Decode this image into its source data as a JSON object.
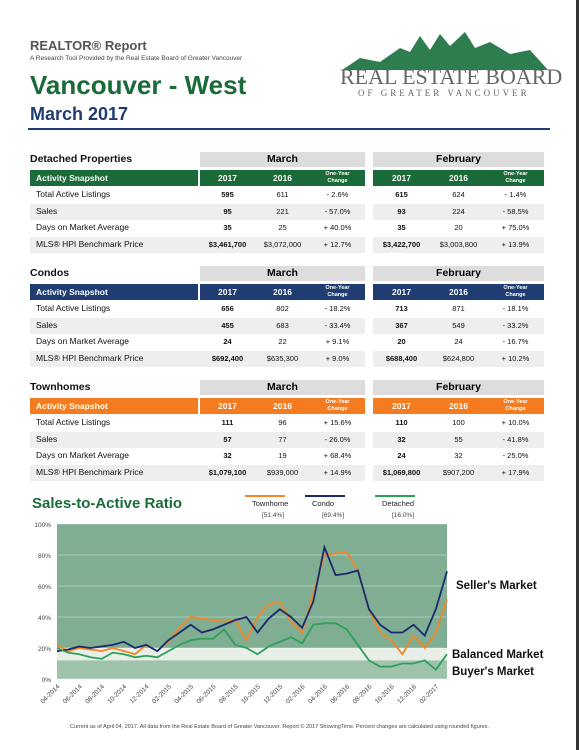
{
  "header": {
    "report": "REALTOR® Report",
    "subtitle": "A Research Tool Provided by the Real Estate Board of Greater Vancouver",
    "area": "Vancouver - West",
    "period": "March 2017",
    "logo_main": "REAL ESTATE BOARD",
    "logo_sub": "OF GREATER VANCOUVER"
  },
  "tables": [
    {
      "title": "Detached Properties",
      "color": "#1b6b3a",
      "months": [
        "March",
        "February"
      ],
      "snapshot": "Activity Snapshot",
      "columns": [
        "2017",
        "2016",
        "One-Year Change",
        "2017",
        "2016",
        "One-Year Change"
      ],
      "rows": [
        [
          "Total Active Listings",
          "595",
          "611",
          "- 2.6%",
          "615",
          "624",
          "- 1.4%"
        ],
        [
          "Sales",
          "95",
          "221",
          "- 57.0%",
          "93",
          "224",
          "- 58.5%"
        ],
        [
          "Days on Market Average",
          "35",
          "25",
          "+ 40.0%",
          "35",
          "20",
          "+ 75.0%"
        ],
        [
          "MLS® HPI Benchmark Price",
          "$3,461,700",
          "$3,072,000",
          "+ 12.7%",
          "$3,422,700",
          "$3,003,800",
          "+ 13.9%"
        ]
      ]
    },
    {
      "title": "Condos",
      "color": "#1f3d73",
      "months": [
        "March",
        "February"
      ],
      "snapshot": "Activity Snapshot",
      "columns": [
        "2017",
        "2016",
        "One-Year Change",
        "2017",
        "2016",
        "One-Year Change"
      ],
      "rows": [
        [
          "Total Active Listings",
          "656",
          "802",
          "- 18.2%",
          "713",
          "871",
          "- 18.1%"
        ],
        [
          "Sales",
          "455",
          "683",
          "- 33.4%",
          "367",
          "549",
          "- 33.2%"
        ],
        [
          "Days on Market Average",
          "24",
          "22",
          "+ 9.1%",
          "20",
          "24",
          "- 16.7%"
        ],
        [
          "MLS® HPI Benchmark Price",
          "$692,400",
          "$635,300",
          "+ 9.0%",
          "$688,400",
          "$624,800",
          "+ 10.2%"
        ]
      ]
    },
    {
      "title": "Townhomes",
      "color": "#f47b20",
      "months": [
        "March",
        "February"
      ],
      "snapshot": "Activity Snapshot",
      "columns": [
        "2017",
        "2016",
        "One-Year Change",
        "2017",
        "2016",
        "One-Year Change"
      ],
      "rows": [
        [
          "Total Active Listings",
          "111",
          "96",
          "+ 15.6%",
          "110",
          "100",
          "+ 10.0%"
        ],
        [
          "Sales",
          "57",
          "77",
          "- 26.0%",
          "32",
          "55",
          "- 41.8%"
        ],
        [
          "Days on Market Average",
          "32",
          "19",
          "+ 68.4%",
          "24",
          "32",
          "- 25.0%"
        ],
        [
          "MLS® HPI Benchmark Price",
          "$1,079,100",
          "$939,000",
          "+ 14.9%",
          "$1,069,800",
          "$907,200",
          "+ 17.9%"
        ]
      ]
    }
  ],
  "chart_data": {
    "type": "line",
    "title": "Sales-to-Active Ratio",
    "categories": [
      "04-2014",
      null,
      "06-2014",
      null,
      "08-2014",
      null,
      "10-2014",
      null,
      "12-2014",
      null,
      "02-2015",
      null,
      "04-2015",
      null,
      "06-2015",
      null,
      "08-2015",
      null,
      "10-2015",
      null,
      "12-2015",
      null,
      "02-2016",
      null,
      "04-2016",
      null,
      "06-2016",
      null,
      "08-2016",
      null,
      "10-2016",
      null,
      "12-2016",
      null,
      "02-2017",
      null
    ],
    "series": [
      {
        "name": "Townhome",
        "legend_value": "[51.4%]",
        "color": "#f4862a",
        "values": [
          22,
          18,
          20,
          19,
          18,
          20,
          18,
          16,
          22,
          18,
          24,
          33,
          40,
          39,
          38,
          37,
          38,
          25,
          40,
          48,
          50,
          37,
          30,
          55,
          80,
          81,
          82,
          70,
          45,
          30,
          25,
          16,
          28,
          20,
          30,
          51.4
        ]
      },
      {
        "name": "Condo",
        "legend_value": "[69.4%]",
        "color": "#1a2a6c",
        "values": [
          18,
          19,
          21,
          20,
          21,
          22,
          24,
          20,
          22,
          18,
          25,
          30,
          35,
          30,
          32,
          35,
          38,
          40,
          30,
          39,
          45,
          40,
          33,
          50,
          85,
          67,
          68,
          70,
          45,
          35,
          30,
          30,
          35,
          28,
          45,
          69.4
        ]
      },
      {
        "name": "Detached",
        "legend_value": "[16.0%]",
        "color": "#2ea05a",
        "values": [
          20,
          17,
          16,
          14,
          13,
          17,
          16,
          14,
          15,
          14,
          18,
          22,
          25,
          26,
          26,
          32,
          22,
          20,
          16,
          21,
          24,
          27,
          23,
          35,
          36,
          36,
          32,
          22,
          12,
          8,
          8,
          10,
          10,
          12,
          6,
          16.0
        ]
      }
    ],
    "zones": [
      {
        "label": "Seller's Market",
        "from": 20,
        "to": 100,
        "color": "#7fae93"
      },
      {
        "label": "Balanced Market",
        "from": 12,
        "to": 20,
        "color": "#e8efe9"
      },
      {
        "label": "Buyer's Market",
        "from": 0,
        "to": 12,
        "color": "#9fc2ab"
      }
    ],
    "ylim": [
      0,
      100
    ],
    "yticks": [
      {
        "value": 0,
        "label": "0%"
      },
      {
        "value": 20,
        "label": "20%"
      },
      {
        "value": 40,
        "label": "40%"
      },
      {
        "value": 60,
        "label": "60%"
      },
      {
        "value": 80,
        "label": "80%"
      },
      {
        "value": 100,
        "label": "100%"
      }
    ],
    "grid": true
  },
  "footer": "Current as of April 04, 2017. All data from the Real Estate Board of Greater Vancouver. Report © 2017 ShowingTime. Percent changes are calculated using rounded figures."
}
